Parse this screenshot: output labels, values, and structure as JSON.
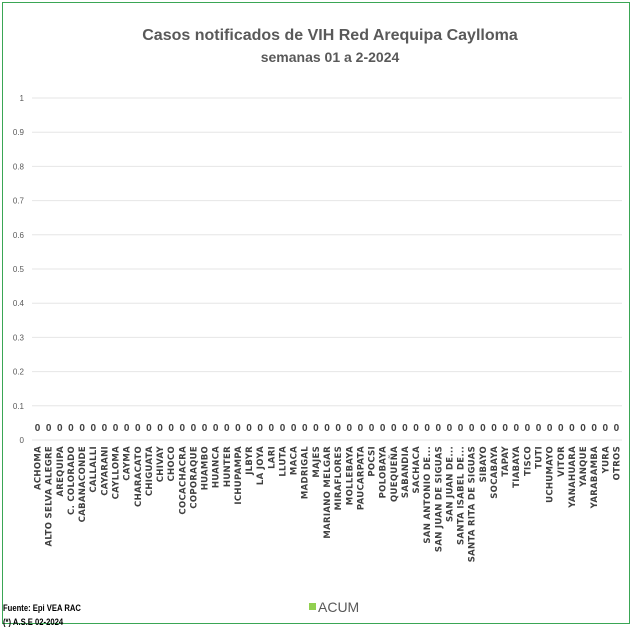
{
  "chart_data": {
    "type": "bar",
    "title": "Casos notificados de VIH Red Arequipa Caylloma",
    "subtitle": "semanas 01 a 2-2024",
    "ylim": [
      0,
      1
    ],
    "yticks": [
      "0",
      "0.1",
      "0.2",
      "0.3",
      "0.4",
      "0.5",
      "0.6",
      "0.7",
      "0.8",
      "0.9",
      "1"
    ],
    "grid": true,
    "legend_position": "bottom",
    "categories": [
      "ACHOMA",
      "ALTO SELVA ALEGRE",
      "AREQUIPA",
      "C. COLORADO",
      "CABANACONDE",
      "CALLALLI",
      "CAYARANI",
      "CAYLLOMA",
      "CAYMA",
      "CHARACATO",
      "CHIGUATA",
      "CHIVAY",
      "CHOCO",
      "COCACHACRA",
      "COPORAQUE",
      "HUAMBO",
      "HUANCA",
      "HUNTER",
      "ICHUPAMPA",
      "JLBYR",
      "LA JOYA",
      "LARI",
      "LLUTA",
      "MACA",
      "MADRIGAL",
      "MAJES",
      "MARIANO MELGAR",
      "MIRAFLORES",
      "MOLLEBAYA",
      "PAUCARPATA",
      "POCSI",
      "POLOBAYA",
      "QUEQUEÑA",
      "SABANDIA",
      "SACHACA",
      "SAN ANTONIO DE...",
      "SAN JUAN DE SIGUAS",
      "SAN JUAN DE...",
      "SANTA ISABEL DE...",
      "SANTA RITA DE SIGUAS",
      "SIBAYO",
      "SOCABAYA",
      "TAPAY",
      "TIABAYA",
      "TISCO",
      "TUTI",
      "UCHUMAYO",
      "VITOR",
      "YANAHUARA",
      "YANQUE",
      "YARABAMBA",
      "YURA",
      "OTROS"
    ],
    "series": [
      {
        "name": "ACUM",
        "color": "#92d050",
        "values": [
          0,
          0,
          0,
          0,
          0,
          0,
          0,
          0,
          0,
          0,
          0,
          0,
          0,
          0,
          0,
          0,
          0,
          0,
          0,
          0,
          0,
          0,
          0,
          0,
          0,
          0,
          0,
          0,
          0,
          0,
          0,
          0,
          0,
          0,
          0,
          0,
          0,
          0,
          0,
          0,
          0,
          0,
          0,
          0,
          0,
          0,
          0,
          0,
          0,
          0,
          0,
          0,
          0
        ],
        "data_labels": [
          "0",
          "0",
          "0",
          "0",
          "0",
          "0",
          "0",
          "0",
          "0",
          "0",
          "0",
          "0",
          "0",
          "0",
          "0",
          "0",
          "0",
          "0",
          "0",
          "0",
          "0",
          "0",
          "0",
          "0",
          "0",
          "0",
          "0",
          "0",
          "0",
          "0",
          "0",
          "0",
          "0",
          "0",
          "0",
          "0",
          "0",
          "0",
          "0",
          "0",
          "0",
          "0",
          "0",
          "0",
          "0",
          "0",
          "0",
          "0",
          "0",
          "0",
          "0",
          "0",
          "0"
        ]
      }
    ]
  },
  "footer": {
    "source_line1": "Fuente: Epi VEA RAC",
    "source_line2": "(*) A.S.E 02-2024"
  },
  "colors": {
    "frame_border": "#3aa655",
    "gridline": "#e6e6e6",
    "text": "#595959"
  }
}
